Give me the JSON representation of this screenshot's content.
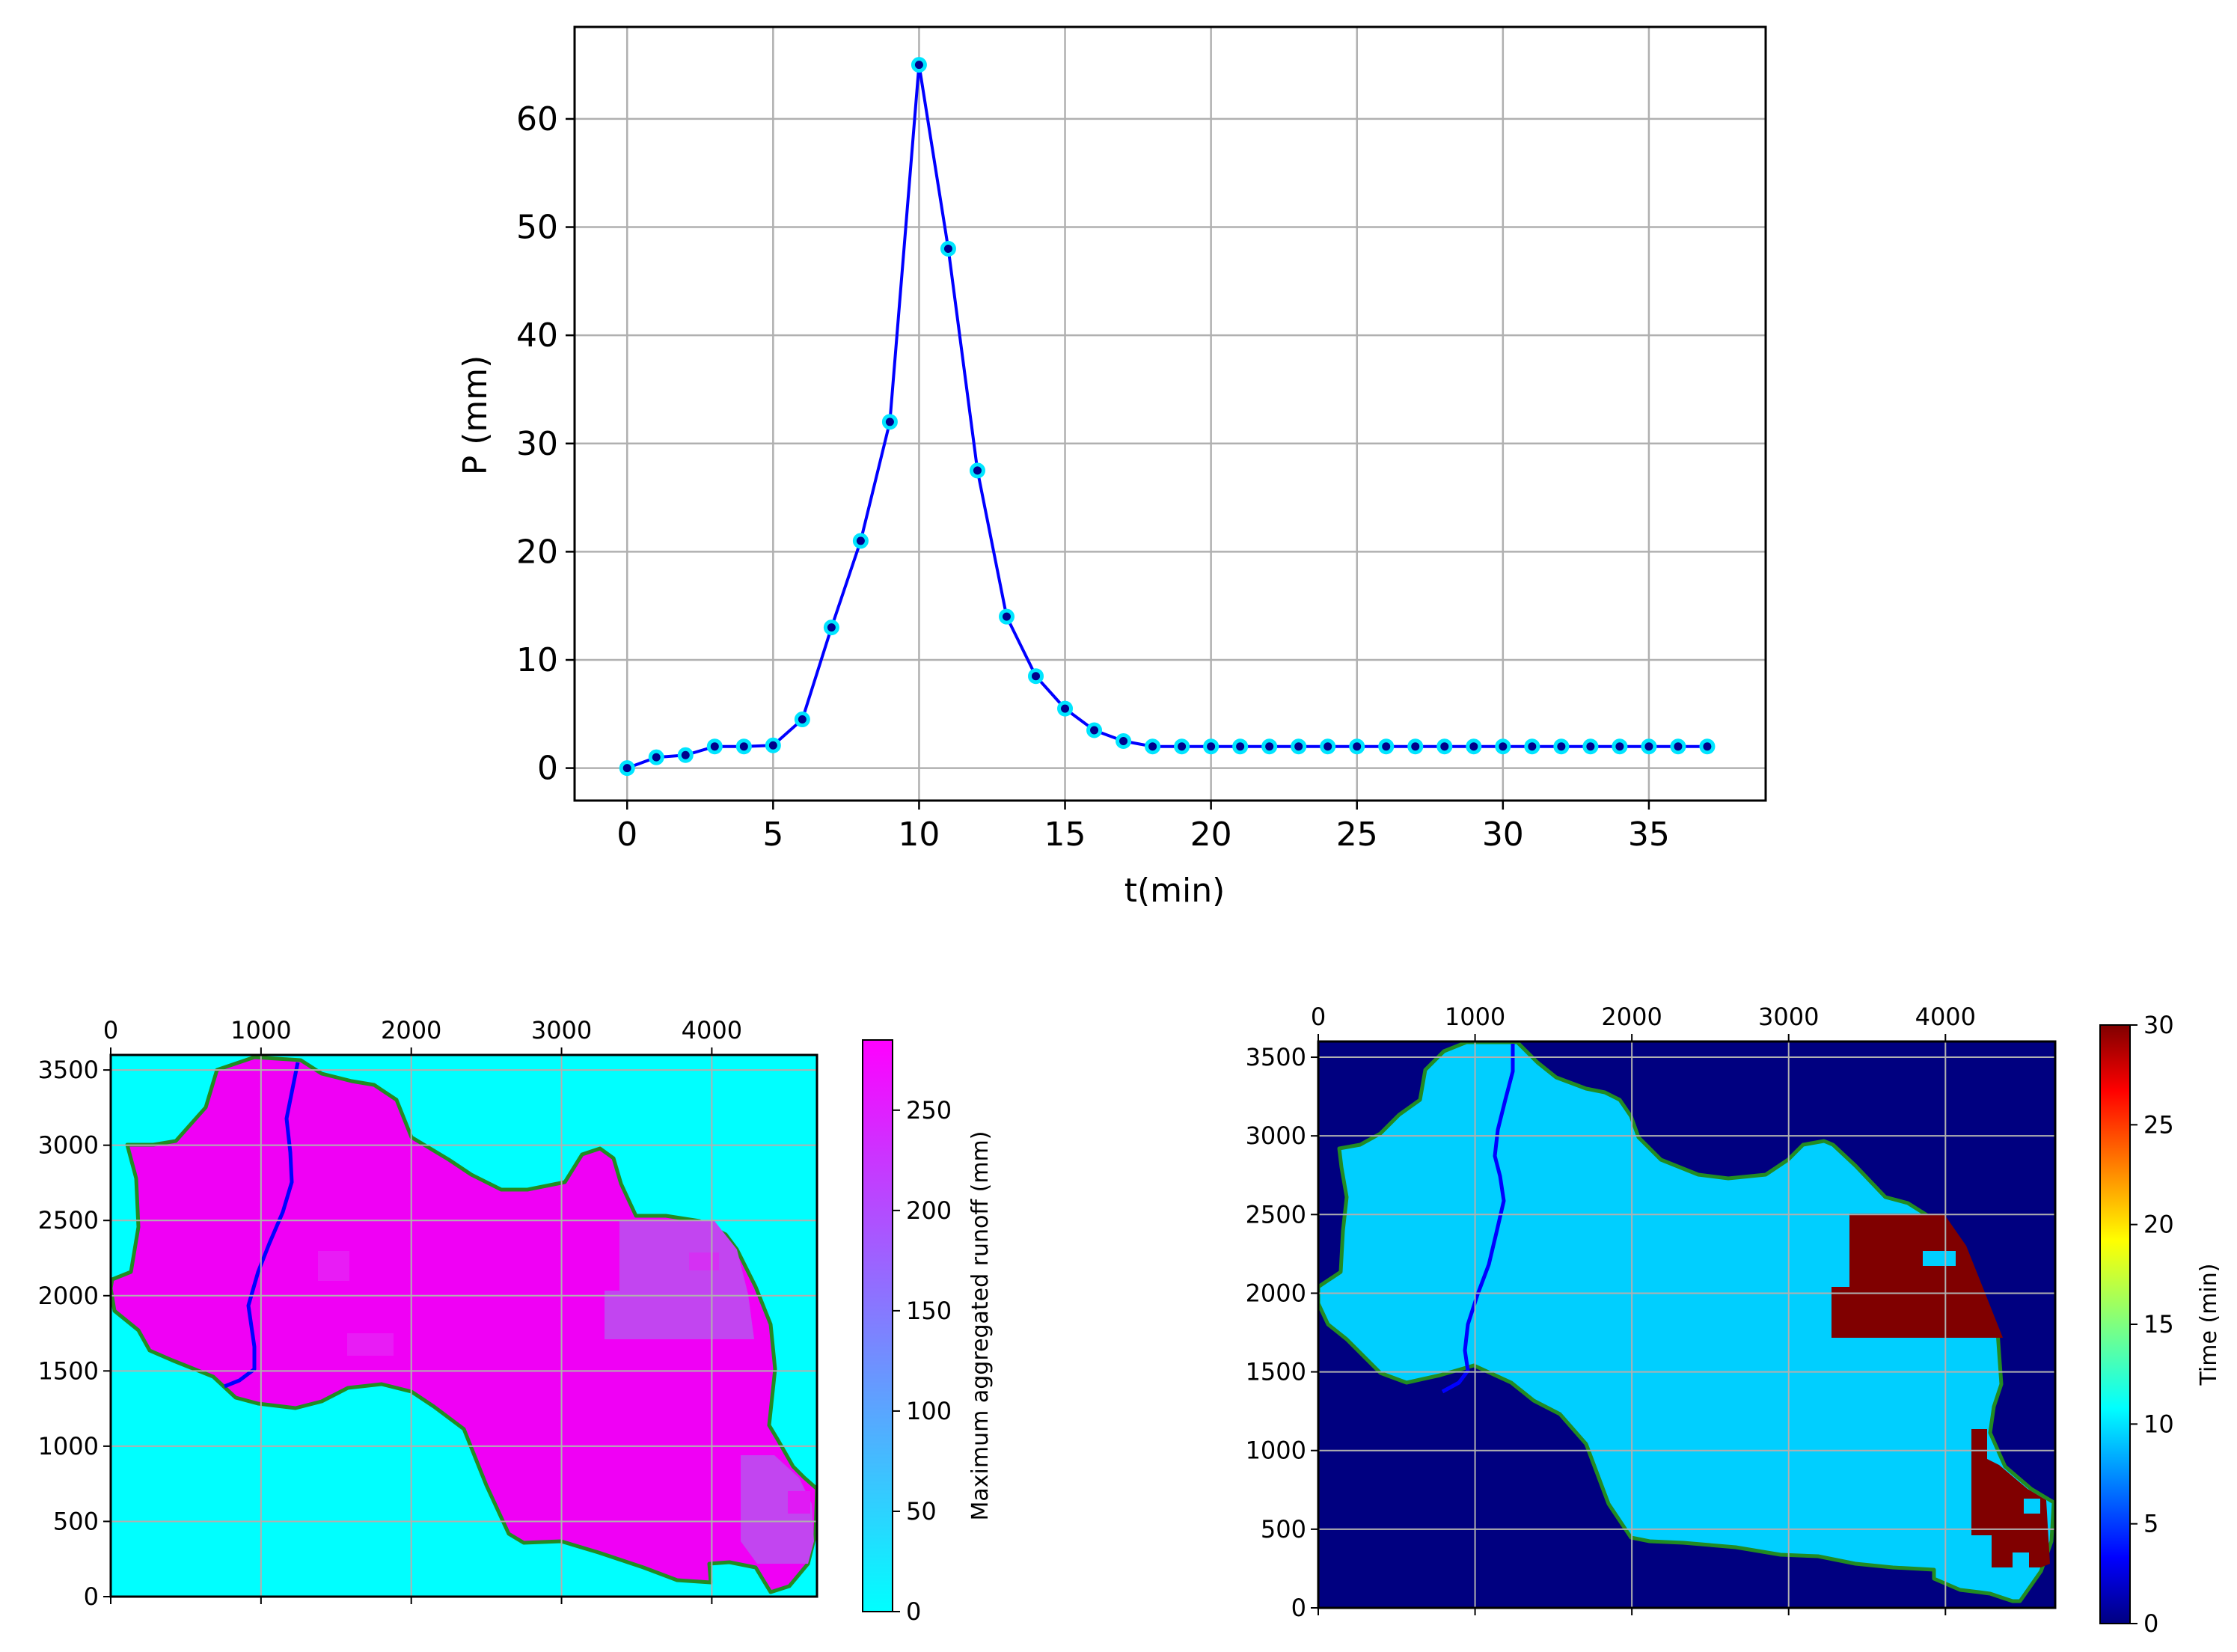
{
  "chart_data": [
    {
      "type": "line",
      "xlabel": "t(min)",
      "ylabel": "P (mm)",
      "xlim": [
        -1.8,
        39
      ],
      "ylim": [
        -3,
        68.5
      ],
      "xticks": [
        0,
        5,
        10,
        15,
        20,
        25,
        30,
        35
      ],
      "yticks": [
        0,
        10,
        20,
        30,
        40,
        50,
        60
      ],
      "grid": true,
      "line_color": "#0000ff",
      "marker_face": "#00008b",
      "marker_edge": "#00e5ff",
      "x": [
        0,
        1,
        2,
        3,
        4,
        5,
        6,
        7,
        8,
        9,
        10,
        11,
        12,
        13,
        14,
        15,
        16,
        17,
        18,
        19,
        20,
        21,
        22,
        23,
        24,
        25,
        26,
        27,
        28,
        29,
        30,
        31,
        32,
        33,
        34,
        35,
        36,
        37
      ],
      "y": [
        0,
        1,
        1.2,
        2,
        2,
        2.1,
        4.5,
        13,
        21,
        32,
        65,
        48,
        27.5,
        14,
        8.5,
        5.5,
        3.5,
        2.5,
        2,
        2,
        2,
        2,
        2,
        2,
        2,
        2,
        2,
        2,
        2,
        2,
        2,
        2,
        2,
        2,
        2,
        2,
        2,
        2
      ]
    },
    {
      "type": "heatmap",
      "colorbar_label": "Maximum aggregated runoff (mm)",
      "xticks": [
        0,
        1000,
        2000,
        3000,
        4000
      ],
      "yticks": [
        0,
        500,
        1000,
        1500,
        2000,
        2500,
        3000,
        3500
      ],
      "colorbar_ticks": [
        0,
        50,
        100,
        150,
        200,
        250
      ],
      "xlim": [
        0,
        4700
      ],
      "ylim": [
        0,
        3600
      ],
      "colorbar_range": [
        0,
        285
      ],
      "colormap": "cool",
      "background_color": "#00ffff",
      "basin_color": "#f000f5",
      "patch_color": "#c245f0",
      "boundary_color": "#228b22",
      "stream_color": "#0000ff",
      "grid": true
    },
    {
      "type": "heatmap",
      "colorbar_label": "Time (min)",
      "xticks": [
        0,
        1000,
        2000,
        3000,
        4000
      ],
      "yticks": [
        0,
        500,
        1000,
        1500,
        2000,
        2500,
        3000,
        3500
      ],
      "colorbar_ticks": [
        0,
        5,
        10,
        15,
        20,
        25,
        30
      ],
      "xlim": [
        0,
        4700
      ],
      "ylim": [
        0,
        3600
      ],
      "colorbar_range": [
        0,
        30
      ],
      "colormap": "jet",
      "background_color": "#000080",
      "basin_color": "#00cfff",
      "late_color": "#800000",
      "boundary_color": "#228b22",
      "stream_color": "#0000ff",
      "grid": true
    }
  ]
}
